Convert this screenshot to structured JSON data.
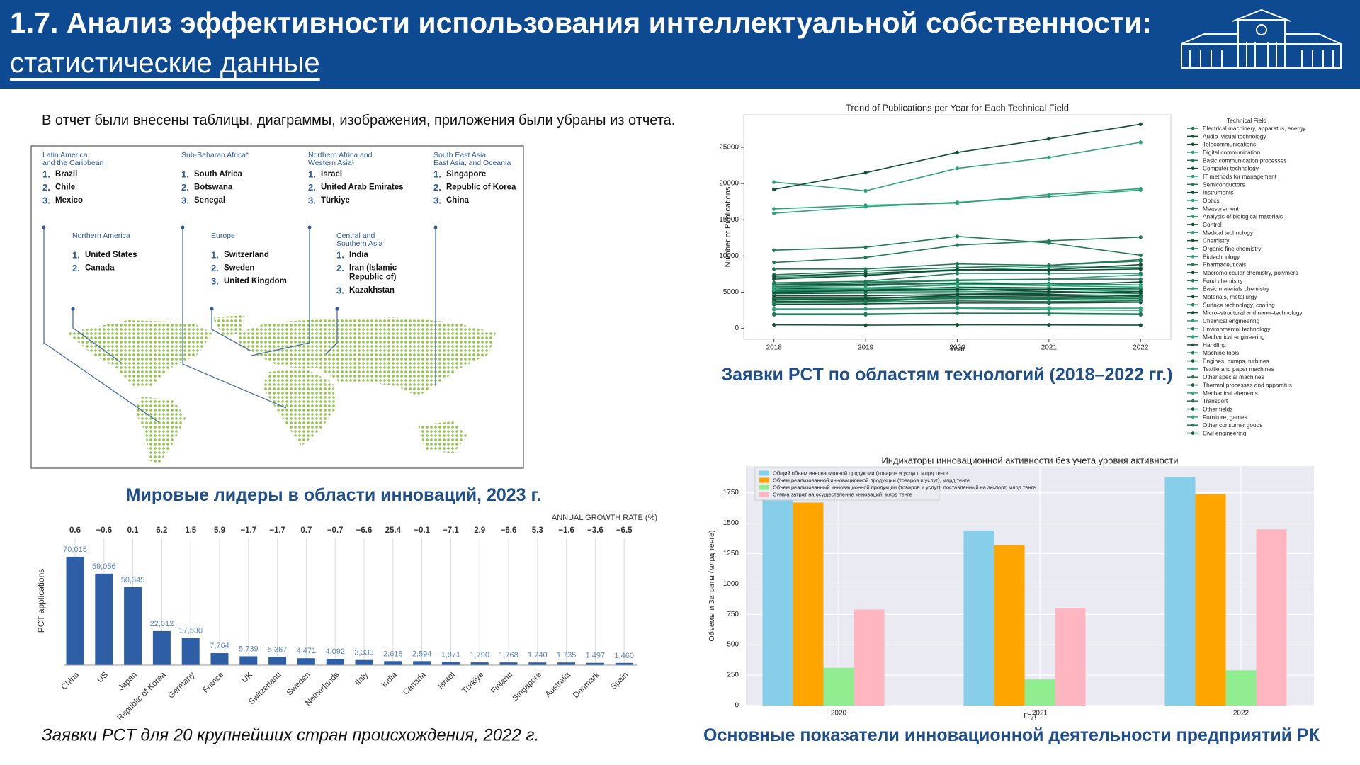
{
  "header": {
    "title": "1.7. Анализ эффективности использования интеллектуальной собственности:",
    "subtitle": "статистические данные"
  },
  "intro": "В отчет были внесены таблицы, диаграммы, изображения, приложения были убраны из отчета.",
  "world_map": {
    "caption": "Мировые лидеры в области инноваций, 2023 г.",
    "regions": [
      {
        "title": [
          "Latin America",
          "and the Caribbean"
        ],
        "items": [
          {
            "rank": "1.",
            "name": [
              "Brazil"
            ]
          },
          {
            "rank": "2.",
            "name": [
              "Chile"
            ]
          },
          {
            "rank": "3.",
            "name": [
              "Mexico"
            ]
          }
        ]
      },
      {
        "title": [
          "Sub-Saharan  Africa*"
        ],
        "items": [
          {
            "rank": "1.",
            "name": [
              "South Africa"
            ]
          },
          {
            "rank": "2.",
            "name": [
              "Botswana"
            ]
          },
          {
            "rank": "3.",
            "name": [
              "Senegal"
            ]
          }
        ]
      },
      {
        "title": [
          "Northern Africa and",
          "Western Asia¹"
        ],
        "items": [
          {
            "rank": "1.",
            "name": [
              "Israel"
            ]
          },
          {
            "rank": "2.",
            "name": [
              "United Arab Emirates"
            ]
          },
          {
            "rank": "3.",
            "name": [
              "Türkiye"
            ]
          }
        ]
      },
      {
        "title": [
          "South East Asia,",
          "East Asia, and Oceania"
        ],
        "items": [
          {
            "rank": "1.",
            "name": [
              "Singapore"
            ]
          },
          {
            "rank": "2.",
            "name": [
              "Republic of Korea"
            ]
          },
          {
            "rank": "3.",
            "name": [
              "China"
            ]
          }
        ]
      },
      {
        "title": [
          "Northern  America"
        ],
        "items": [
          {
            "rank": "1.",
            "name": [
              "United States"
            ]
          },
          {
            "rank": "2.",
            "name": [
              "Canada"
            ]
          }
        ]
      },
      {
        "title": [
          "Europe"
        ],
        "items": [
          {
            "rank": "1.",
            "name": [
              "Switzerland"
            ]
          },
          {
            "rank": "2.",
            "name": [
              "Sweden"
            ]
          },
          {
            "rank": "3.",
            "name": [
              "United Kingdom"
            ]
          }
        ]
      },
      {
        "title": [
          "Central and",
          "Southern Asia"
        ],
        "items": [
          {
            "rank": "1.",
            "name": [
              "India"
            ]
          },
          {
            "rank": "2.",
            "name": [
              "Iran  (Islamic",
              "Republic  of)"
            ]
          },
          {
            "rank": "3.",
            "name": [
              "Kazakhstan"
            ]
          }
        ]
      }
    ]
  },
  "chart_data": [
    {
      "type": "bar",
      "caption": "Заявки PCT для 20 крупнейших стран происхождения, 2022 г.",
      "ylabel": "PCT applications",
      "growth_rate_label": "ANNUAL GROWTH RATE (%)",
      "categories": [
        "China",
        "US",
        "Japan",
        "Republic of Korea",
        "Germany",
        "France",
        "UK",
        "Switzerland",
        "Sweden",
        "Netherlands",
        "Italy",
        "India",
        "Canada",
        "Israel",
        "Türkiye",
        "Finland",
        "Singapore",
        "Australia",
        "Denmark",
        "Spain"
      ],
      "values": [
        70015,
        59056,
        50345,
        22012,
        17530,
        7764,
        5739,
        5367,
        4471,
        4092,
        3333,
        2618,
        2594,
        1971,
        1790,
        1768,
        1740,
        1735,
        1497,
        1460
      ],
      "value_labels": [
        "70,015",
        "59,056",
        "50,345",
        "22,012",
        "17,530",
        "7,764",
        "5,739",
        "5,367",
        "4,471",
        "4,092",
        "3,333",
        "2,618",
        "2,594",
        "1,971",
        "1,790",
        "1,768",
        "1,740",
        "1,735",
        "1,497",
        "1,460"
      ],
      "growth_rates": [
        "0.6",
        "−0.6",
        "0.1",
        "6.2",
        "1.5",
        "5.9",
        "−1.7",
        "−1.7",
        "0.7",
        "−0.7",
        "−6.6",
        "25.4",
        "−0.1",
        "−7.1",
        "2.9",
        "−6.6",
        "5.3",
        "−1.6",
        "−3.6",
        "−6.5"
      ],
      "color": "#2e5fa6",
      "ylim": [
        0,
        75000
      ]
    },
    {
      "type": "line",
      "title": "Trend of Publications per Year for Each Technical Field",
      "caption": "Заявки PCT по областям технологий (2018–2022 гг.)",
      "xlabel": "Year",
      "ylabel": "Number of Publications",
      "legend_title": "Technical Field",
      "x": [
        2018,
        2019,
        2020,
        2021,
        2022
      ],
      "xlim": [
        2017.67,
        2022.33
      ],
      "xticks": [
        2018,
        2019,
        2020,
        2021,
        2022
      ],
      "ylim": [
        -1500,
        29500
      ],
      "yticks": [
        0,
        5000,
        10000,
        15000,
        20000,
        25000
      ],
      "series": [
        {
          "name": "Electrical machinery, apparatus, energy",
          "color": "#1f7a56",
          "values": [
            9100,
            9800,
            11500,
            12100,
            12600
          ]
        },
        {
          "name": "Audio–visual technology",
          "color": "#134e36",
          "values": [
            4800,
            4900,
            4900,
            4700,
            4500
          ]
        },
        {
          "name": "Telecommunications",
          "color": "#134e36",
          "values": [
            5200,
            5300,
            5700,
            5600,
            5400
          ]
        },
        {
          "name": "Digital communication",
          "color": "#2ea37a",
          "values": [
            20200,
            19000,
            22100,
            23600,
            25700
          ]
        },
        {
          "name": "Basic communication processes",
          "color": "#1f7a56",
          "values": [
            2000,
            2000,
            2100,
            2100,
            2000
          ]
        },
        {
          "name": "Computer technology",
          "color": "#134e36",
          "values": [
            19200,
            21500,
            24300,
            26200,
            28200
          ]
        },
        {
          "name": "IT methods for management",
          "color": "#2ea37a",
          "values": [
            5600,
            6400,
            6700,
            6800,
            7400
          ]
        },
        {
          "name": "Semiconductors",
          "color": "#1f7a56",
          "values": [
            6300,
            6500,
            7600,
            7600,
            7600
          ]
        },
        {
          "name": "Instruments",
          "color": "#134e36",
          "values": [
            6000,
            6100,
            6200,
            6000,
            6400
          ]
        },
        {
          "name": "Optics",
          "color": "#2ea37a",
          "values": [
            5400,
            5500,
            5600,
            5400,
            5100
          ]
        },
        {
          "name": "Measurement",
          "color": "#1f7a56",
          "values": [
            8200,
            8200,
            8900,
            8700,
            9500
          ]
        },
        {
          "name": "Analysis of biological materials",
          "color": "#2ea37a",
          "values": [
            2600,
            2700,
            2900,
            2800,
            2800
          ]
        },
        {
          "name": "Control",
          "color": "#134e36",
          "values": [
            3700,
            3800,
            4300,
            4100,
            4400
          ]
        },
        {
          "name": "Medical technology",
          "color": "#2ea37a",
          "values": [
            15900,
            16800,
            17400,
            18200,
            19100
          ]
        },
        {
          "name": "Chemistry",
          "color": "#134e36",
          "values": [
            4500,
            4500,
            4700,
            4600,
            4600
          ]
        },
        {
          "name": "Organic fine chemistry",
          "color": "#1f7a56",
          "values": [
            5800,
            5900,
            6300,
            6200,
            6000
          ]
        },
        {
          "name": "Biotechnology",
          "color": "#2ea37a",
          "values": [
            7000,
            7400,
            8000,
            8500,
            8400
          ]
        },
        {
          "name": "Pharmaceuticals",
          "color": "#1f7a56",
          "values": [
            10800,
            11200,
            12700,
            11800,
            10100
          ]
        },
        {
          "name": "Macromolecular chemistry, polymers",
          "color": "#134e36",
          "values": [
            4200,
            4200,
            4400,
            4500,
            4300
          ]
        },
        {
          "name": "Food chemistry",
          "color": "#1f7a56",
          "values": [
            1900,
            1900,
            2100,
            2000,
            1900
          ]
        },
        {
          "name": "Basic materials chemistry",
          "color": "#2ea37a",
          "values": [
            4900,
            5000,
            5100,
            5000,
            4800
          ]
        },
        {
          "name": "Materials, metallurgy",
          "color": "#134e36",
          "values": [
            3300,
            3400,
            3500,
            3500,
            3600
          ]
        },
        {
          "name": "Surface technology, coating",
          "color": "#1f7a56",
          "values": [
            4100,
            4200,
            4300,
            4200,
            4100
          ]
        },
        {
          "name": "Micro–structural and nano–technology",
          "color": "#134e36",
          "values": [
            500,
            450,
            500,
            480,
            450
          ]
        },
        {
          "name": "Chemical engineering",
          "color": "#2ea37a",
          "values": [
            5100,
            5200,
            5300,
            5400,
            5400
          ]
        },
        {
          "name": "Environmental technology",
          "color": "#1f7a56",
          "values": [
            3500,
            3600,
            3800,
            3700,
            3800
          ]
        },
        {
          "name": "Mechanical engineering",
          "color": "#2ea37a",
          "values": [
            16500,
            17000,
            17300,
            18500,
            19300
          ]
        },
        {
          "name": "Handling",
          "color": "#134e36",
          "values": [
            5000,
            5200,
            5300,
            5400,
            5600
          ]
        },
        {
          "name": "Machine tools",
          "color": "#1f7a56",
          "values": [
            4000,
            4000,
            4100,
            4200,
            4300
          ]
        },
        {
          "name": "Engines, pumps, turbines",
          "color": "#134e36",
          "values": [
            5600,
            5300,
            5400,
            5100,
            4900
          ]
        },
        {
          "name": "Textile and paper machines",
          "color": "#2ea37a",
          "values": [
            2700,
            2700,
            2800,
            2600,
            2500
          ]
        },
        {
          "name": "Other special machines",
          "color": "#1f7a56",
          "values": [
            6100,
            6300,
            6600,
            6800,
            6800
          ]
        },
        {
          "name": "Thermal processes and apparatus",
          "color": "#134e36",
          "values": [
            3900,
            4100,
            4600,
            4900,
            5100
          ]
        },
        {
          "name": "Mechanical elements",
          "color": "#2ea37a",
          "values": [
            5700,
            5600,
            6000,
            6000,
            6000
          ]
        },
        {
          "name": "Transport",
          "color": "#1f7a56",
          "values": [
            7400,
            7900,
            8400,
            8700,
            9300
          ]
        },
        {
          "name": "Other fields",
          "color": "#134e36",
          "values": [
            7200,
            7600,
            8100,
            8000,
            8200
          ]
        },
        {
          "name": "Furniture, games",
          "color": "#2ea37a",
          "values": [
            5300,
            5500,
            6100,
            5900,
            5700
          ]
        },
        {
          "name": "Other consumer goods",
          "color": "#1f7a56",
          "values": [
            3600,
            3700,
            4200,
            4000,
            3900
          ]
        },
        {
          "name": "Civil engineering",
          "color": "#134e36",
          "values": [
            6800,
            7300,
            8100,
            8100,
            8800
          ]
        }
      ]
    },
    {
      "type": "grouped_bar",
      "title": "Индикаторы инновационной активности без учета уровня активности",
      "caption": "Основные показатели инновационной деятельности предприятий РК",
      "xlabel": "Год",
      "ylabel": "Объемы и Затраты (млрд тенге)",
      "categories": [
        "2020",
        "2021",
        "2022"
      ],
      "ylim": [
        0,
        1970
      ],
      "yticks": [
        0,
        250,
        500,
        750,
        1000,
        1250,
        1500,
        1750
      ],
      "grid": true,
      "series": [
        {
          "name": "Общий объем инновационной продукции (товаров и услуг), млрд тенге",
          "color": "#87ceeb",
          "values": [
            1720,
            1440,
            1880
          ]
        },
        {
          "name": "Объем реализованной инновационной продукции (товаров и услуг), млрд тенге",
          "color": "#ffa500",
          "values": [
            1670,
            1320,
            1740
          ]
        },
        {
          "name": "Объем реализованный инновационной продукции (товаров и услуг), поставленный на экспорт, млрд тенге",
          "color": "#90ee90",
          "values": [
            310,
            215,
            290
          ]
        },
        {
          "name": "Сумма затрат на осуществление инноваций, млрд тенге",
          "color": "#ffb6c1",
          "values": [
            790,
            800,
            1450
          ]
        }
      ]
    }
  ]
}
